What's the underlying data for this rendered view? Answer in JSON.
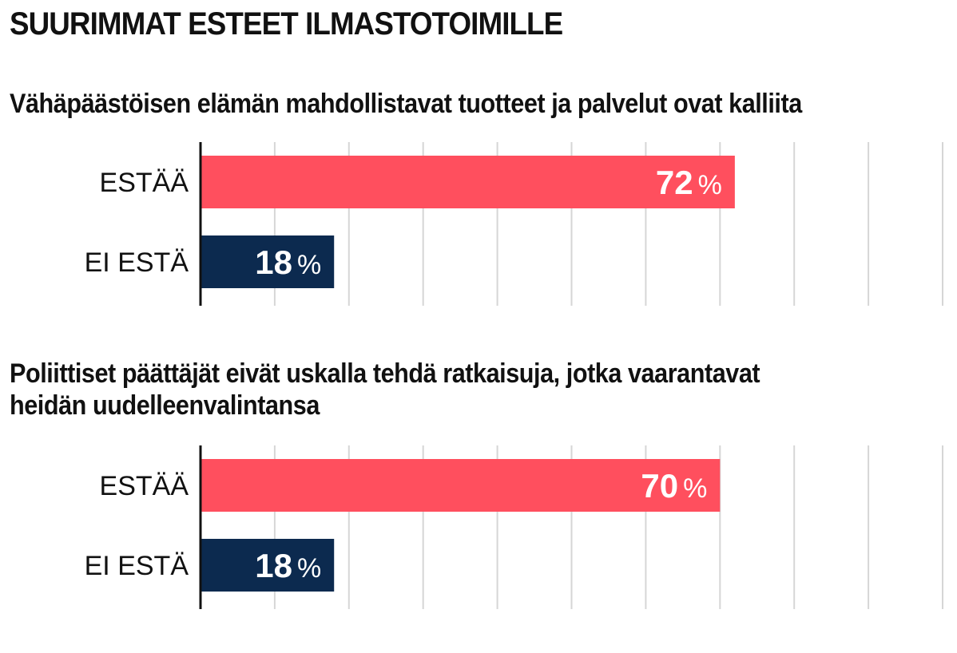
{
  "title": "SUURIMMAT ESTEET ILMASTOTOIMILLE",
  "colors": {
    "estaa": "#ff4f5e",
    "ei_esta": "#0c2a4f",
    "grid": "#d6d6d6",
    "axis": "#111111"
  },
  "chart_data": [
    {
      "type": "bar",
      "orientation": "horizontal",
      "title": "Vähäpäästöisen elämän mahdollistavat tuotteet ja palvelut ovat kalliita",
      "categories": [
        "ESTÄÄ",
        "EI ESTÄ"
      ],
      "values": [
        72,
        18
      ],
      "value_labels": [
        "72",
        "18"
      ],
      "unit": "%",
      "xlim": [
        0,
        100
      ],
      "grid": true
    },
    {
      "type": "bar",
      "orientation": "horizontal",
      "title_lines": [
        "Poliittiset päättäjät eivät uskalla tehdä ratkaisuja, jotka vaarantavat",
        "heidän uudelleenvalintansa"
      ],
      "categories": [
        "ESTÄÄ",
        "EI ESTÄ"
      ],
      "values": [
        70,
        18
      ],
      "value_labels": [
        "70",
        "18"
      ],
      "unit": "%",
      "xlim": [
        0,
        100
      ],
      "grid": true
    }
  ]
}
